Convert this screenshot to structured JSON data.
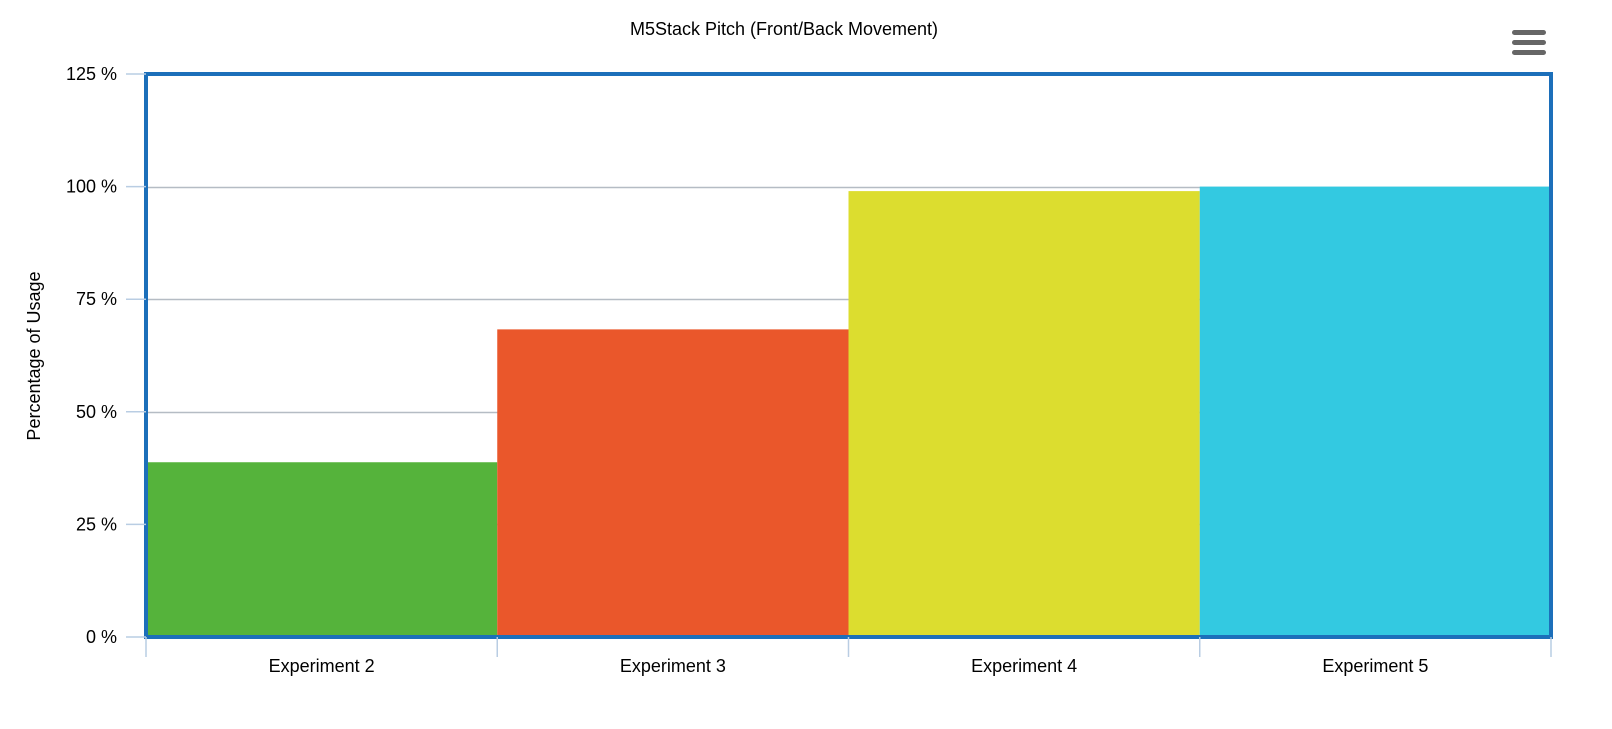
{
  "chart_data": {
    "type": "bar",
    "title": "M5Stack Pitch (Front/Back Movement)",
    "xlabel": "",
    "ylabel": "Percentage of Usage",
    "categories": [
      "Experiment 2",
      "Experiment 3",
      "Experiment 4",
      "Experiment 5"
    ],
    "values": [
      38.8,
      68.3,
      99.0,
      100.0
    ],
    "bar_colors": [
      "#55b33b",
      "#ea572b",
      "#dcdd2f",
      "#33c9e1"
    ],
    "ylim": [
      0,
      125
    ],
    "yticks": [
      0,
      25,
      50,
      75,
      100,
      125
    ],
    "ytick_suffix": " %",
    "grid": true,
    "legend": "none"
  },
  "colors": {
    "plot_border": "#1c6fba",
    "gridline": "#b5bcc4",
    "axis_line": "#b9cde3",
    "menu_icon": "#666666"
  },
  "toolbar": {
    "menu_icon": "hamburger-menu-icon"
  }
}
